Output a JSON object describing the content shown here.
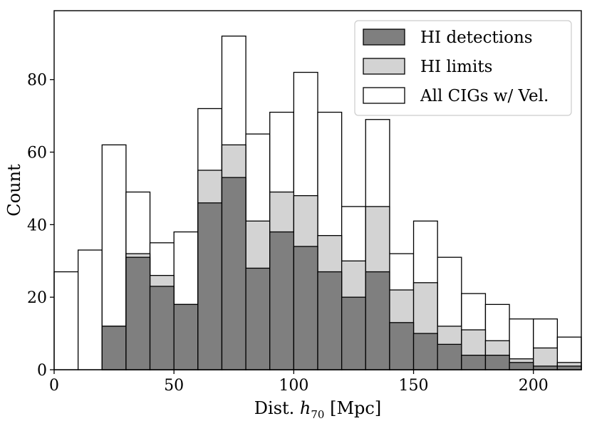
{
  "chart_data": {
    "type": "bar",
    "bin_width": 10,
    "bin_starts": [
      0,
      10,
      20,
      30,
      40,
      50,
      60,
      70,
      80,
      90,
      100,
      110,
      120,
      130,
      140,
      150,
      160,
      170,
      180,
      190,
      200,
      210
    ],
    "series": [
      {
        "name": "All CIGs w/ Vel.",
        "color": "#ffffff",
        "values": [
          27,
          33,
          62,
          49,
          35,
          38,
          72,
          92,
          65,
          71,
          82,
          71,
          45,
          69,
          32,
          41,
          31,
          21,
          18,
          14,
          14,
          9
        ]
      },
      {
        "name": "HI limits",
        "color": "#d3d3d3",
        "values": [
          0,
          0,
          12,
          32,
          26,
          18,
          55,
          62,
          41,
          49,
          48,
          37,
          30,
          45,
          22,
          24,
          12,
          11,
          8,
          3,
          6,
          2
        ]
      },
      {
        "name": "HI detections",
        "color": "#7f7f7f",
        "values": [
          0,
          0,
          12,
          31,
          23,
          18,
          46,
          53,
          28,
          38,
          34,
          27,
          20,
          27,
          13,
          10,
          7,
          4,
          4,
          2,
          1,
          1
        ]
      }
    ],
    "xlabel": "Dist. h70 [Mpc]",
    "xlabel_parts": {
      "prefix": "Dist. ",
      "var": "h",
      "sub": "70",
      "suffix": " [Mpc]"
    },
    "ylabel": "Count",
    "xlim": [
      0,
      220
    ],
    "ylim": [
      0,
      99
    ],
    "xticks": [
      0,
      50,
      100,
      150,
      200
    ],
    "yticks": [
      0,
      20,
      40,
      60,
      80
    ],
    "grid": false,
    "legend_position": "top-right",
    "legend_order": [
      "HI detections",
      "HI limits",
      "All CIGs w/ Vel."
    ]
  }
}
